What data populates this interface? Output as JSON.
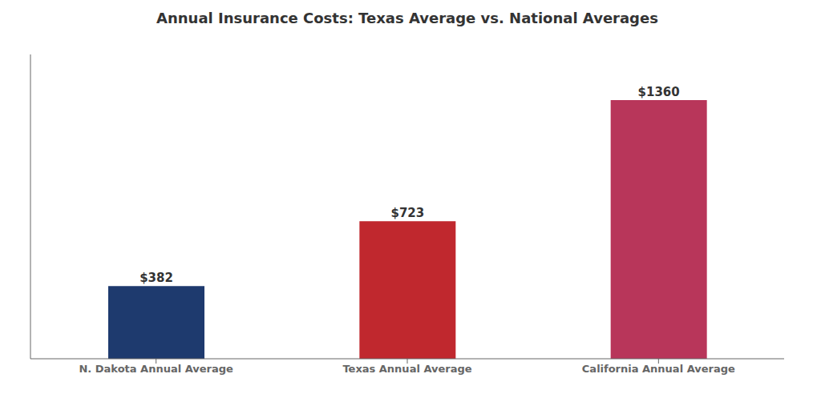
{
  "chart_data": {
    "type": "bar",
    "title": "Annual Insurance Costs: Texas Average vs. National Averages",
    "categories": [
      "N. Dakota Annual Average",
      "Texas Annual Average",
      "California Annual Average"
    ],
    "values": [
      382,
      723,
      1360
    ],
    "value_labels": [
      "$382",
      "$723",
      "$1360"
    ],
    "data_labels": true,
    "colors": [
      "#1e3a6e",
      "#c0282e",
      "#b8365a"
    ],
    "ylim": [
      0,
      1600
    ],
    "yticks": [],
    "tick_labels": "x",
    "grid": false
  }
}
